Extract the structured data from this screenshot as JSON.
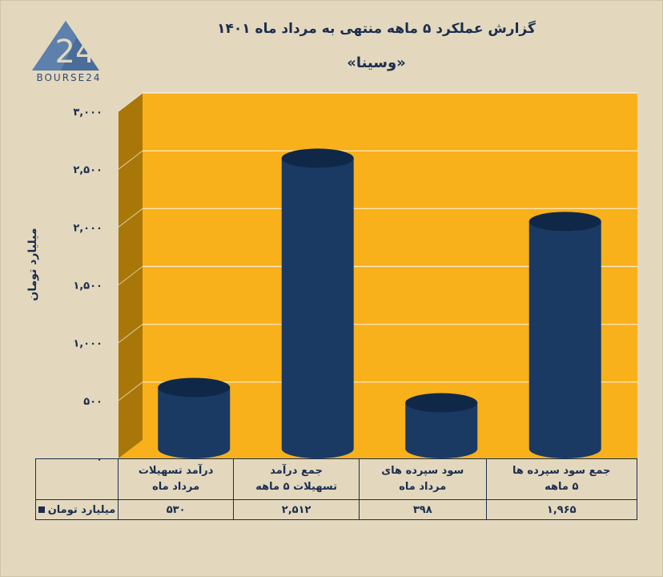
{
  "header": {
    "title": "گزارش عملکرد ۵ ماهه منتهی به مرداد ماه ۱۴۰۱",
    "subtitle": "«وسینا»"
  },
  "logo": {
    "text": "BOURSE24",
    "mark": "24"
  },
  "colors": {
    "background": "#e3d8be",
    "plot_back": "#f8b01b",
    "plot_side": "#a97708",
    "bar": "#1a3a63",
    "bar_top": "#0f2848",
    "text": "#1b2d4f"
  },
  "chart_data": {
    "type": "bar",
    "ylabel": "میلیارد تومان",
    "ylim": [
      0,
      3000
    ],
    "yticks": [
      0,
      500,
      1000,
      1500,
      2000,
      2500,
      3000
    ],
    "ytick_labels": [
      "۰",
      "۵۰۰",
      "۱,۰۰۰",
      "۱,۵۰۰",
      "۲,۰۰۰",
      "۲,۵۰۰",
      "۳,۰۰۰"
    ],
    "grid": true,
    "categories": [
      {
        "line1": "درآمد تسهیلات",
        "line2": "مرداد ماه"
      },
      {
        "line1": "جمع درآمد",
        "line2": "تسهیلات ۵ ماهه"
      },
      {
        "line1": "سود سپرده های",
        "line2": "مرداد ماه"
      },
      {
        "line1": "جمع سود سپرده ها",
        "line2": "۵ ماهه"
      }
    ],
    "series": [
      {
        "name": "میلیارد تومان",
        "values": [
          530,
          2512,
          398,
          1965
        ],
        "value_labels": [
          "۵۳۰",
          "۲,۵۱۲",
          "۳۹۸",
          "۱,۹۶۵"
        ]
      }
    ]
  }
}
